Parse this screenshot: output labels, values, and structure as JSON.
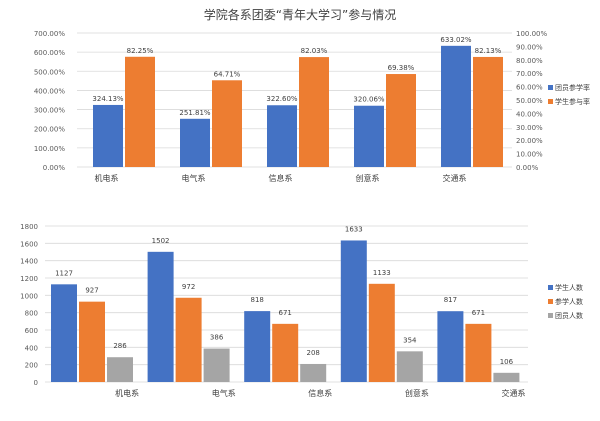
{
  "title": "学院各系团委“青年大学习”参与情况",
  "chart_data": [
    {
      "type": "bar",
      "categories": [
        "机电系",
        "电气系",
        "信息系",
        "创意系",
        "交通系"
      ],
      "series": [
        {
          "name": "团员参学率",
          "axis": "left",
          "color": "#4472c4",
          "values": [
            324.13,
            251.81,
            322.6,
            320.06,
            633.02
          ],
          "labels": [
            "324.13%",
            "251.81%",
            "322.60%",
            "320.06%",
            "633.02%"
          ]
        },
        {
          "name": "学生参与率",
          "axis": "right",
          "color": "#ed7d31",
          "values": [
            82.25,
            64.71,
            82.03,
            69.38,
            82.13
          ],
          "labels": [
            "82.25%",
            "64.71%",
            "82.03%",
            "69.38%",
            "82.13%"
          ]
        }
      ],
      "ylim": [
        0,
        700
      ],
      "yticks": [
        "0.00%",
        "100.00%",
        "200.00%",
        "300.00%",
        "400.00%",
        "500.00%",
        "600.00%",
        "700.00%"
      ],
      "y2lim": [
        0,
        100
      ],
      "y2ticks": [
        "0.00%",
        "10.00%",
        "20.00%",
        "30.00%",
        "40.00%",
        "50.00%",
        "60.00%",
        "70.00%",
        "80.00%",
        "90.00%",
        "100.00%"
      ],
      "grid": true,
      "legend": "right"
    },
    {
      "type": "bar",
      "categories": [
        "机电系",
        "电气系",
        "信息系",
        "创意系",
        "交通系"
      ],
      "series": [
        {
          "name": "学生人数",
          "color": "#4472c4",
          "values": [
            1127,
            1502,
            818,
            1633,
            817
          ]
        },
        {
          "name": "参学人数",
          "color": "#ed7d31",
          "values": [
            927,
            972,
            671,
            1133,
            671
          ]
        },
        {
          "name": "团员人数",
          "color": "#a5a5a5",
          "values": [
            286,
            386,
            208,
            354,
            106
          ]
        }
      ],
      "ylim": [
        0,
        1800
      ],
      "yticks": [
        "0",
        "200",
        "400",
        "600",
        "800",
        "1000",
        "1200",
        "1400",
        "1600",
        "1800"
      ],
      "grid": true,
      "legend": "right"
    }
  ]
}
